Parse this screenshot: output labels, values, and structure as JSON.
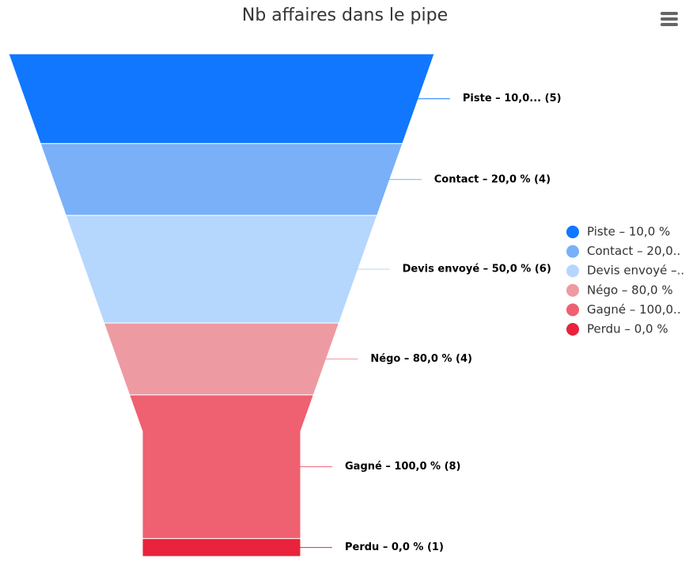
{
  "chart_data": {
    "type": "funnel",
    "title": "Nb affaires dans le pipe",
    "categories": [
      "Piste – 10,0 %",
      "Contact – 20,0..",
      "Devis envoyé –..",
      "Négo – 80,0 %",
      "Gagné – 100,0..",
      "Perdu – 0,0 %"
    ],
    "values": [
      5,
      4,
      6,
      4,
      8,
      1
    ],
    "value_labels": [
      "Piste – 10,0... (5)",
      "Contact – 20,0 % (4)",
      "Devis envoyé – 50,0 % (6)",
      "Négo – 80,0 % (4)",
      "Gagné – 100,0 % (8)",
      "Perdu – 0,0 % (1)"
    ],
    "colors": [
      "#1177ff",
      "#79b0f8",
      "#b5d6fd",
      "#ee9aa2",
      "#ef6070",
      "#e8233b"
    ]
  }
}
